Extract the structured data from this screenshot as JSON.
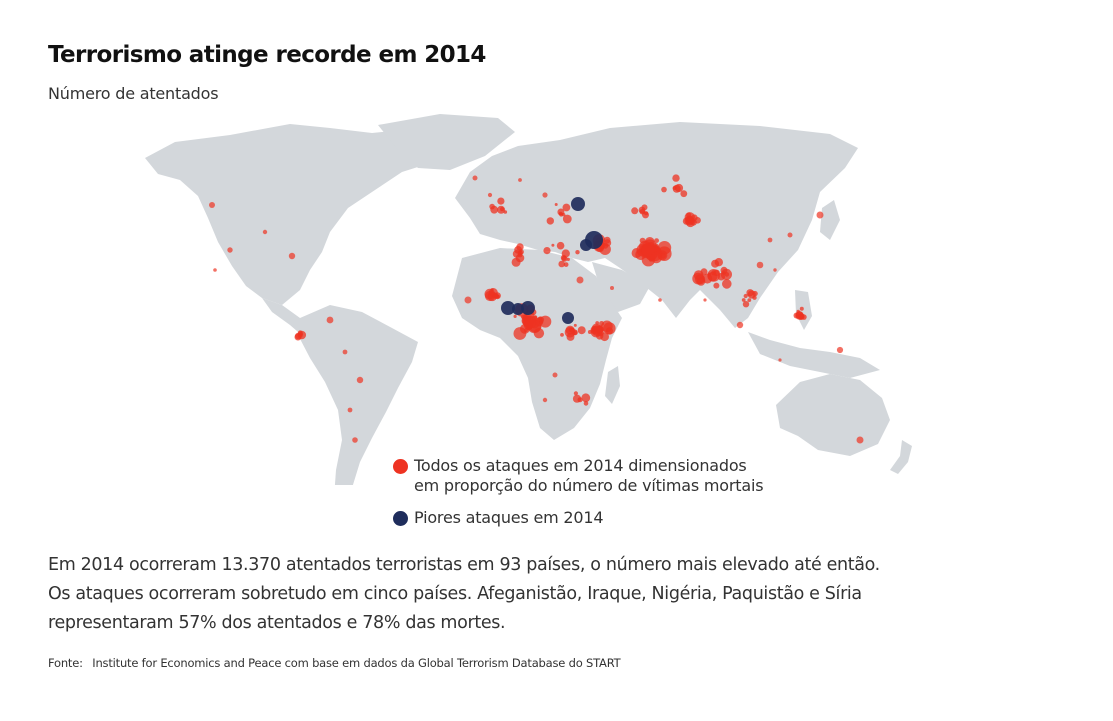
{
  "header": {
    "title": "Terrorismo atinge recorde em 2014",
    "subtitle": "Número de atentados"
  },
  "map": {
    "land_color": "#d3d7db",
    "attack_color": "#ee3322",
    "worst_color": "#1f2d5c"
  },
  "legend": {
    "all_attacks_line1": "Todos os ataques em 2014 dimensionados",
    "all_attacks_line2": "em proporção do número de vítimas mortais",
    "worst_attacks": "Piores ataques em 2014"
  },
  "body": {
    "line1": "Em 2014 ocorreram 13.370 atentados terroristas em 93 países, o número mais elevado até então.",
    "line2": "Os ataques ocorreram sobretudo em cinco países. Afeganistão, Iraque, Nigéria, Paquistão e Síria",
    "line3": "representaram 57% dos atentados e 78% das mortes."
  },
  "source": {
    "label": "Fonte:",
    "text": "Institute for Economics and Peace com base em dados da Global Terrorism Database do START"
  }
}
